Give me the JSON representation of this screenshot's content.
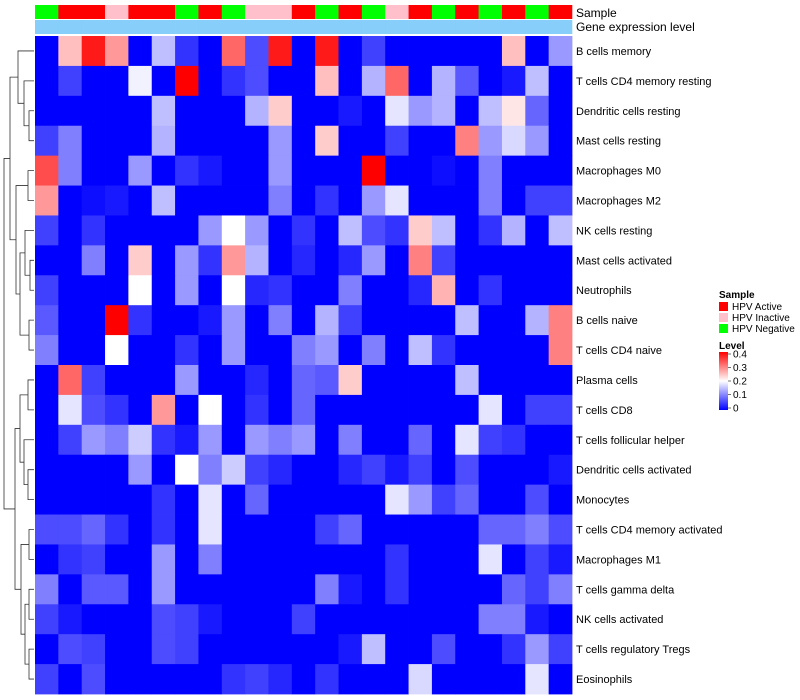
{
  "chart_data": {
    "type": "heatmap",
    "annotation_tracks": [
      "Sample",
      "Gene expression level"
    ],
    "rows": [
      "B cells memory",
      "T cells CD4 memory resting",
      "Dendritic cells resting",
      "Mast cells resting",
      "Macrophages M0",
      "Macrophages M2",
      "NK cells resting",
      "Mast cells activated",
      "Neutrophils",
      "B cells naive",
      "T cells CD4 naive",
      "Plasma cells",
      "T cells CD8",
      "T cells follicular helper",
      "Dendritic cells activated",
      "Monocytes",
      "T cells CD4 memory activated",
      "Macrophages M1",
      "T cells gamma delta",
      "NK cells activated",
      "T cells regulatory  Tregs",
      "Eosinophils"
    ],
    "sample_groups": [
      "Negative",
      "Active",
      "Active",
      "Inactive",
      "Active",
      "Active",
      "Negative",
      "Active",
      "Negative",
      "Inactive",
      "Inactive",
      "Active",
      "Negative",
      "Active",
      "Negative",
      "Inactive",
      "Active",
      "Negative",
      "Active",
      "Negative",
      "Active",
      "Negative",
      "Active"
    ],
    "values": [
      [
        0.0,
        0.25,
        0.38,
        0.28,
        0.0,
        0.15,
        0.04,
        0.0,
        0.32,
        0.06,
        0.38,
        0.0,
        0.38,
        0.0,
        0.05,
        0.0,
        0.0,
        0.0,
        0.0,
        0.0,
        0.25,
        0.0,
        0.12
      ],
      [
        0.0,
        0.05,
        0.0,
        0.0,
        0.19,
        0.0,
        0.4,
        0.0,
        0.04,
        0.06,
        0.0,
        0.0,
        0.25,
        0.0,
        0.14,
        0.32,
        0.0,
        0.14,
        0.07,
        0.0,
        0.02,
        0.15,
        0.0
      ],
      [
        0.0,
        0.0,
        0.0,
        0.0,
        0.0,
        0.15,
        0.0,
        0.0,
        0.0,
        0.14,
        0.24,
        0.0,
        0.0,
        0.02,
        0.0,
        0.18,
        0.12,
        0.14,
        0.0,
        0.15,
        0.22,
        0.08,
        0.0
      ],
      [
        0.05,
        0.1,
        0.0,
        0.0,
        0.0,
        0.14,
        0.0,
        0.0,
        0.0,
        0.0,
        0.12,
        0.0,
        0.24,
        0.0,
        0.0,
        0.05,
        0.0,
        0.0,
        0.3,
        0.12,
        0.17,
        0.12,
        0.0
      ],
      [
        0.34,
        0.1,
        0.0,
        0.0,
        0.12,
        0.0,
        0.04,
        0.02,
        0.0,
        0.0,
        0.12,
        0.0,
        0.0,
        0.0,
        0.4,
        0.0,
        0.0,
        0.01,
        0.0,
        0.1,
        0.0,
        0.0,
        0.0
      ],
      [
        0.28,
        0.0,
        0.01,
        0.02,
        0.0,
        0.15,
        0.0,
        0.0,
        0.0,
        0.0,
        0.1,
        0.0,
        0.04,
        0.0,
        0.12,
        0.18,
        0.0,
        0.0,
        0.0,
        0.1,
        0.0,
        0.05,
        0.05
      ],
      [
        0.05,
        0.0,
        0.04,
        0.0,
        0.0,
        0.0,
        0.0,
        0.12,
        0.2,
        0.12,
        0.0,
        0.04,
        0.0,
        0.15,
        0.06,
        0.04,
        0.24,
        0.15,
        0.0,
        0.04,
        0.14,
        0.0,
        0.15
      ],
      [
        0.0,
        0.0,
        0.1,
        0.0,
        0.24,
        0.0,
        0.12,
        0.04,
        0.28,
        0.14,
        0.0,
        0.03,
        0.0,
        0.03,
        0.12,
        0.0,
        0.3,
        0.05,
        0.0,
        0.0,
        0.0,
        0.0,
        0.0
      ],
      [
        0.05,
        0.0,
        0.0,
        0.0,
        0.2,
        0.0,
        0.12,
        0.0,
        0.2,
        0.03,
        0.04,
        0.0,
        0.0,
        0.1,
        0.0,
        0.0,
        0.03,
        0.26,
        0.0,
        0.04,
        0.0,
        0.0,
        0.0
      ],
      [
        0.07,
        0.0,
        0.0,
        0.4,
        0.04,
        0.0,
        0.0,
        0.02,
        0.12,
        0.0,
        0.1,
        0.0,
        0.14,
        0.05,
        0.0,
        0.0,
        0.0,
        0.0,
        0.15,
        0.0,
        0.0,
        0.14,
        0.3
      ],
      [
        0.1,
        0.0,
        0.0,
        0.2,
        0.0,
        0.0,
        0.04,
        0.0,
        0.12,
        0.0,
        0.0,
        0.1,
        0.12,
        0.0,
        0.1,
        0.0,
        0.15,
        0.04,
        0.0,
        0.0,
        0.0,
        0.0,
        0.3
      ],
      [
        0.0,
        0.32,
        0.05,
        0.0,
        0.0,
        0.0,
        0.12,
        0.0,
        0.0,
        0.03,
        0.0,
        0.08,
        0.07,
        0.24,
        0.0,
        0.0,
        0.0,
        0.0,
        0.15,
        0.0,
        0.0,
        0.0,
        0.0
      ],
      [
        0.0,
        0.18,
        0.06,
        0.04,
        0.0,
        0.28,
        0.0,
        0.2,
        0.0,
        0.04,
        0.0,
        0.08,
        0.0,
        0.0,
        0.0,
        0.0,
        0.0,
        0.0,
        0.0,
        0.18,
        0.0,
        0.05,
        0.05
      ],
      [
        0.0,
        0.05,
        0.12,
        0.1,
        0.16,
        0.04,
        0.02,
        0.12,
        0.0,
        0.12,
        0.1,
        0.12,
        0.0,
        0.1,
        0.0,
        0.0,
        0.08,
        0.0,
        0.18,
        0.05,
        0.04,
        0.0,
        0.0
      ],
      [
        0.0,
        0.0,
        0.0,
        0.0,
        0.12,
        0.0,
        0.2,
        0.1,
        0.16,
        0.05,
        0.03,
        0.0,
        0.0,
        0.03,
        0.05,
        0.02,
        0.05,
        0.0,
        0.06,
        0.0,
        0.0,
        0.0,
        0.02
      ],
      [
        0.0,
        0.0,
        0.0,
        0.0,
        0.0,
        0.04,
        0.0,
        0.18,
        0.0,
        0.08,
        0.0,
        0.0,
        0.0,
        0.0,
        0.0,
        0.18,
        0.12,
        0.05,
        0.08,
        0.0,
        0.0,
        0.06,
        0.0
      ],
      [
        0.06,
        0.06,
        0.08,
        0.04,
        0.0,
        0.04,
        0.0,
        0.18,
        0.0,
        0.0,
        0.0,
        0.0,
        0.05,
        0.08,
        0.0,
        0.0,
        0.0,
        0.0,
        0.0,
        0.08,
        0.08,
        0.1,
        0.06
      ],
      [
        0.0,
        0.04,
        0.05,
        0.0,
        0.0,
        0.12,
        0.0,
        0.1,
        0.0,
        0.0,
        0.0,
        0.0,
        0.0,
        0.0,
        0.0,
        0.04,
        0.0,
        0.0,
        0.0,
        0.18,
        0.0,
        0.05,
        0.02
      ],
      [
        0.1,
        0.0,
        0.07,
        0.07,
        0.0,
        0.12,
        0.0,
        0.0,
        0.0,
        0.0,
        0.0,
        0.0,
        0.1,
        0.02,
        0.0,
        0.04,
        0.0,
        0.0,
        0.0,
        0.0,
        0.08,
        0.05,
        0.1
      ],
      [
        0.05,
        0.02,
        0.0,
        0.0,
        0.0,
        0.06,
        0.05,
        0.02,
        0.0,
        0.0,
        0.0,
        0.05,
        0.0,
        0.0,
        0.0,
        0.0,
        0.0,
        0.0,
        0.0,
        0.1,
        0.1,
        0.02,
        0.0
      ],
      [
        0.0,
        0.06,
        0.05,
        0.0,
        0.0,
        0.06,
        0.05,
        0.0,
        0.0,
        0.0,
        0.0,
        0.0,
        0.0,
        0.02,
        0.15,
        0.0,
        0.0,
        0.06,
        0.0,
        0.0,
        0.04,
        0.12,
        0.05
      ],
      [
        0.05,
        0.0,
        0.06,
        0.0,
        0.0,
        0.0,
        0.0,
        0.0,
        0.04,
        0.05,
        0.03,
        0.0,
        0.04,
        0.0,
        0.0,
        0.0,
        0.17,
        0.0,
        0.0,
        0.0,
        0.0,
        0.18,
        0.0
      ]
    ],
    "legend": {
      "sample": {
        "title": "Sample",
        "entries": [
          {
            "label": "HPV Active",
            "color": "#ff0000"
          },
          {
            "label": "HPV Inactive",
            "color": "#ffc0cb"
          },
          {
            "label": "HPV Negative",
            "color": "#00ff00"
          }
        ]
      },
      "level": {
        "title": "Level",
        "min": 0,
        "max": 0.4,
        "ticks": [
          "0.4",
          "0.3",
          "0.2",
          "0.1",
          "0"
        ],
        "colors": [
          "#0000ff",
          "#ffffff",
          "#ff0000"
        ]
      }
    },
    "gene_expression_color": "#87cefa",
    "group_colors": {
      "Active": "#ff0000",
      "Inactive": "#ffc0cb",
      "Negative": "#00ff00"
    }
  }
}
